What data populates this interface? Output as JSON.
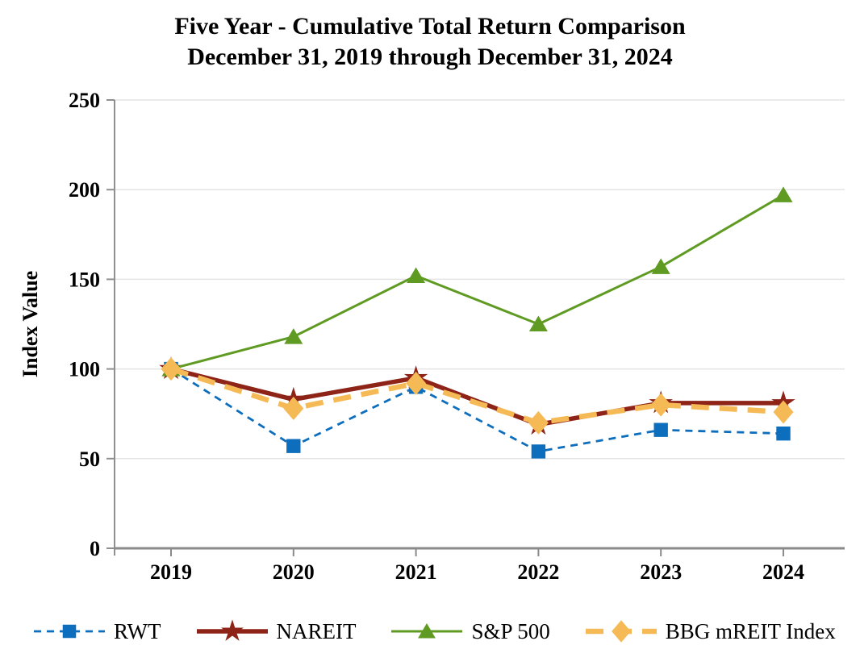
{
  "title": {
    "line1": "Five Year - Cumulative Total Return Comparison",
    "line2": "December 31, 2019 through December 31, 2024"
  },
  "chart_data": {
    "type": "line",
    "x": [
      "2019",
      "2020",
      "2021",
      "2022",
      "2023",
      "2024"
    ],
    "xlabel": "",
    "ylabel": "Index Value",
    "ylim": [
      0,
      250
    ],
    "yticks": [
      0,
      50,
      100,
      150,
      200,
      250
    ],
    "grid": true,
    "legend_position": "bottom",
    "series": [
      {
        "name": "RWT",
        "values": [
          100,
          57,
          90,
          54,
          66,
          64
        ],
        "color": "#0C6EBD",
        "marker": "square",
        "line_style": "dashed",
        "line_width": 2.8,
        "dash": "9 7"
      },
      {
        "name": "NAREIT",
        "values": [
          100,
          83,
          95,
          69,
          81,
          81
        ],
        "color": "#8E2418",
        "marker": "star",
        "line_style": "solid",
        "line_width": 5.5,
        "dash": ""
      },
      {
        "name": "S&P 500",
        "values": [
          100,
          118,
          152,
          125,
          157,
          197
        ],
        "color": "#5F9B22",
        "marker": "triangle",
        "line_style": "solid",
        "line_width": 3,
        "dash": ""
      },
      {
        "name": "BBG mREIT Index",
        "values": [
          100,
          78,
          92,
          70,
          80,
          76
        ],
        "color": "#F5BA55",
        "marker": "diamond",
        "line_style": "dashed",
        "line_width": 6.5,
        "dash": "22 13"
      }
    ]
  },
  "colors": {
    "background": "#FFFFFF",
    "gridline": "#E4E4E4",
    "y_axis": "#8F8F8F",
    "x_axis": "#8A8A8A",
    "text": "#000000"
  }
}
